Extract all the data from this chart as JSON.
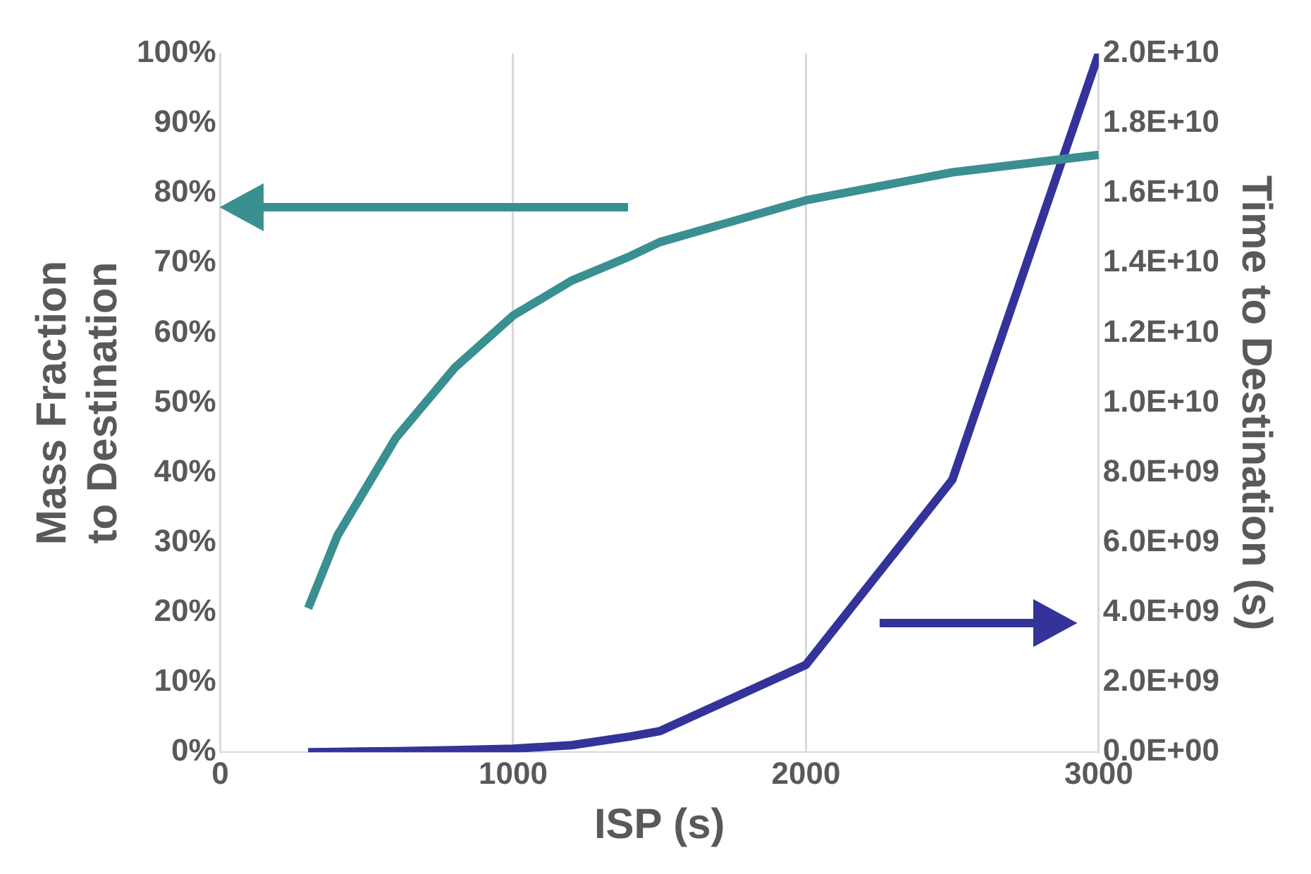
{
  "chart_data": {
    "type": "line",
    "xlabel": "ISP (s)",
    "ylabel": "Mass Fraction to Destination",
    "y2label": "Time to Destination (s)",
    "xlim": [
      0,
      3000
    ],
    "xticks": [
      0,
      1000,
      2000,
      3000
    ],
    "ylim": [
      0,
      100
    ],
    "yticks": [
      {
        "value": 0,
        "label": "0%"
      },
      {
        "value": 10,
        "label": "10%"
      },
      {
        "value": 20,
        "label": "20%"
      },
      {
        "value": 30,
        "label": "30%"
      },
      {
        "value": 40,
        "label": "40%"
      },
      {
        "value": 50,
        "label": "50%"
      },
      {
        "value": 60,
        "label": "60%"
      },
      {
        "value": 70,
        "label": "70%"
      },
      {
        "value": 80,
        "label": "80%"
      },
      {
        "value": 90,
        "label": "90%"
      },
      {
        "value": 100,
        "label": "100%"
      }
    ],
    "y2lim": [
      0,
      20000000000
    ],
    "y2ticks": [
      {
        "value": 0,
        "label": "0.0E+00"
      },
      {
        "value": 2000000000,
        "label": "2.0E+09"
      },
      {
        "value": 4000000000,
        "label": "4.0E+09"
      },
      {
        "value": 6000000000,
        "label": "6.0E+09"
      },
      {
        "value": 8000000000,
        "label": "8.0E+09"
      },
      {
        "value": 10000000000,
        "label": "1.0E+10"
      },
      {
        "value": 12000000000,
        "label": "1.2E+10"
      },
      {
        "value": 14000000000,
        "label": "1.4E+10"
      },
      {
        "value": 16000000000,
        "label": "1.6E+10"
      },
      {
        "value": 18000000000,
        "label": "1.8E+10"
      },
      {
        "value": 20000000000,
        "label": "2.0E+10"
      }
    ],
    "x": [
      300,
      400,
      600,
      800,
      1000,
      1200,
      1400,
      1500,
      2000,
      2500,
      3000
    ],
    "series": [
      {
        "color": "#3a9090",
        "values": [
          20.6,
          31,
          45,
          55,
          62.5,
          67.5,
          71,
          73,
          79,
          83,
          85.5
        ]
      },
      {
        "color": "#33339a",
        "axis": "y2",
        "values": [
          0,
          10000000,
          30000000,
          60000000,
          100000000,
          200000000,
          450000000,
          600000000,
          2500000000,
          7800000000,
          20000000000
        ]
      }
    ],
    "grid": "x",
    "legend": false,
    "marker": "none",
    "line_style": "solid"
  }
}
